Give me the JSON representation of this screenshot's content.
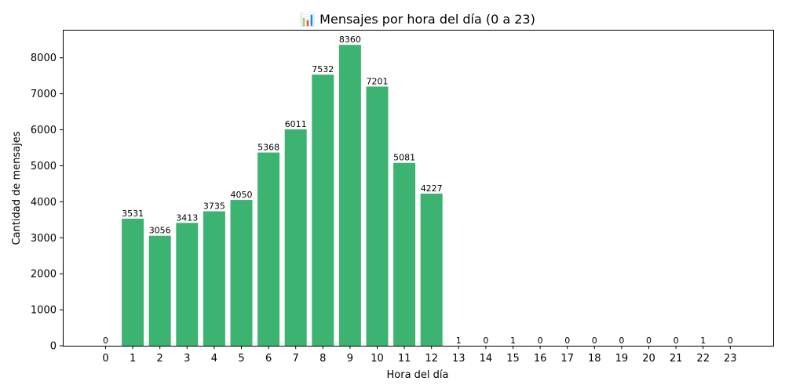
{
  "chart_data": {
    "type": "bar",
    "title": "📊 Mensajes por hora del día (0 a 23)",
    "title_icon": "chart-icon",
    "xlabel": "Hora del día",
    "ylabel": "Cantidad de mensajes",
    "categories": [
      "0",
      "1",
      "2",
      "3",
      "4",
      "5",
      "6",
      "7",
      "8",
      "9",
      "10",
      "11",
      "12",
      "13",
      "14",
      "15",
      "16",
      "17",
      "18",
      "19",
      "20",
      "21",
      "22",
      "23"
    ],
    "values": [
      0,
      3531,
      3056,
      3413,
      3735,
      4050,
      5368,
      6011,
      7532,
      8360,
      7201,
      5081,
      4227,
      1,
      0,
      1,
      0,
      0,
      0,
      0,
      0,
      0,
      1,
      0
    ],
    "ylim": [
      0,
      8778
    ],
    "yticks": [
      0,
      1000,
      2000,
      3000,
      4000,
      5000,
      6000,
      7000,
      8000
    ],
    "bar_color": "#3cb371",
    "grid": false,
    "legend": "none"
  }
}
